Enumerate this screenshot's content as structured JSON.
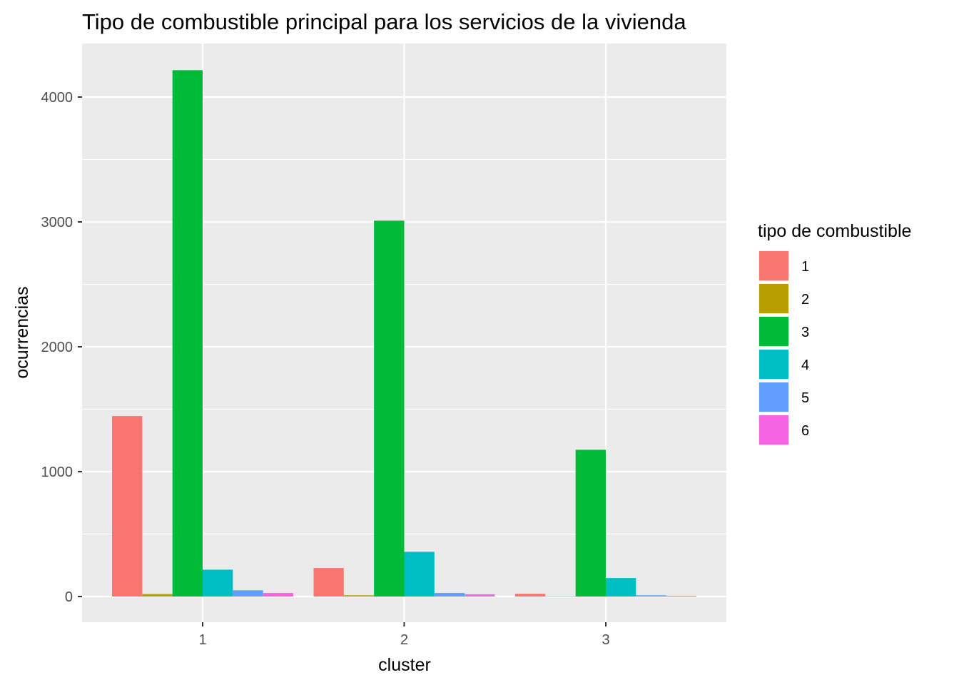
{
  "chart_data": {
    "type": "bar",
    "title": "Tipo de combustible principal para los servicios de la vivienda",
    "xlabel": "cluster",
    "ylabel": "ocurrencias",
    "categories": [
      "1",
      "2",
      "3"
    ],
    "ylim": [
      -200,
      4300
    ],
    "yticks": [
      0,
      1000,
      2000,
      3000,
      4000
    ],
    "grid": true,
    "legend_title": "tipo de combustible",
    "legend_position": "right",
    "series": [
      {
        "name": "1",
        "color": "#F8766D",
        "values": [
          1445,
          228,
          22
        ]
      },
      {
        "name": "2",
        "color": "#B79F00",
        "values": [
          20,
          10,
          3
        ]
      },
      {
        "name": "3",
        "color": "#00BA38",
        "values": [
          4215,
          3010,
          1175
        ]
      },
      {
        "name": "4",
        "color": "#00BFC4",
        "values": [
          215,
          358,
          148
        ]
      },
      {
        "name": "5",
        "color": "#619CFF",
        "values": [
          50,
          28,
          10
        ]
      },
      {
        "name": "6",
        "color": "#F564E3",
        "values": [
          28,
          18,
          6
        ]
      }
    ]
  }
}
